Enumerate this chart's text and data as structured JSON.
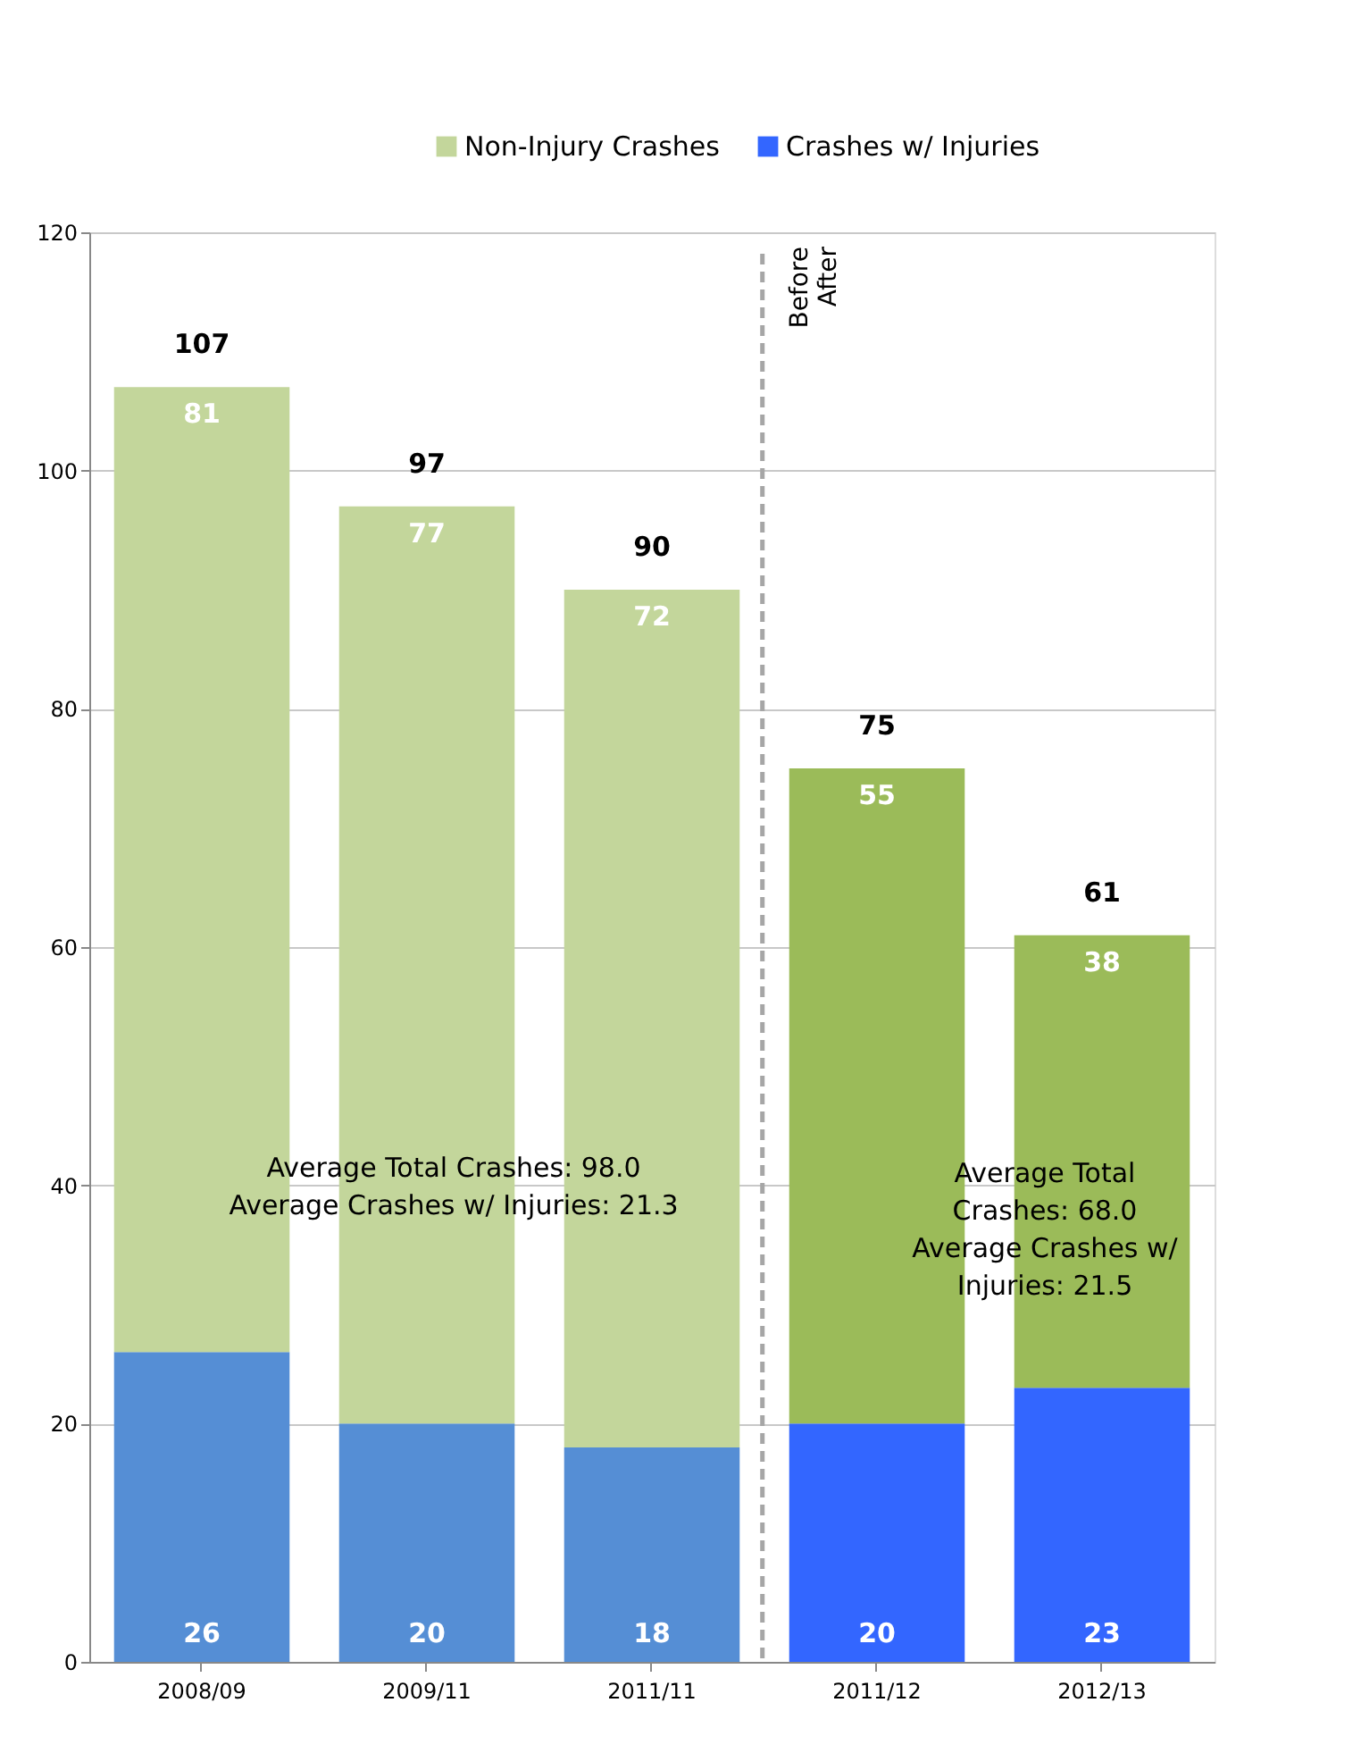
{
  "chart_data": {
    "type": "bar",
    "stacked": true,
    "categories": [
      "2008/09",
      "2009/11",
      "2011/11",
      "2011/12",
      "2012/13"
    ],
    "series": [
      {
        "name": "Crashes w/ Injuries",
        "color": "#3366ff",
        "colors": [
          "#558ed5",
          "#558ed5",
          "#558ed5",
          "#3366ff",
          "#3366ff"
        ],
        "values": [
          26,
          20,
          18,
          20,
          23
        ]
      },
      {
        "name": "Non-Injury Crashes",
        "color": "#c3d69b",
        "colors": [
          "#c3d69b",
          "#c3d69b",
          "#c3d69b",
          "#9bbb59",
          "#9bbb59"
        ],
        "values": [
          81,
          77,
          72,
          55,
          38
        ]
      }
    ],
    "data_labels": true,
    "totals": [
      "107",
      "97",
      "90",
      "75",
      "61"
    ],
    "ylim": [
      0,
      120
    ],
    "yticks": [
      0,
      20,
      40,
      60,
      80,
      100,
      120
    ],
    "grid": "y",
    "legend": "top",
    "ref_lines": [
      {
        "axis": "x",
        "value": "2011/12",
        "color": "#a6a6a6",
        "line_style": "dashed"
      }
    ],
    "annotations": [
      "Average Total Crashes: 98.0\nAverage Crashes w/ Injuries: 21.3",
      "Average Total\nCrashes: 68.0\nAverage Crashes w/\nInjuries: 21.5",
      "Before",
      "After"
    ]
  }
}
